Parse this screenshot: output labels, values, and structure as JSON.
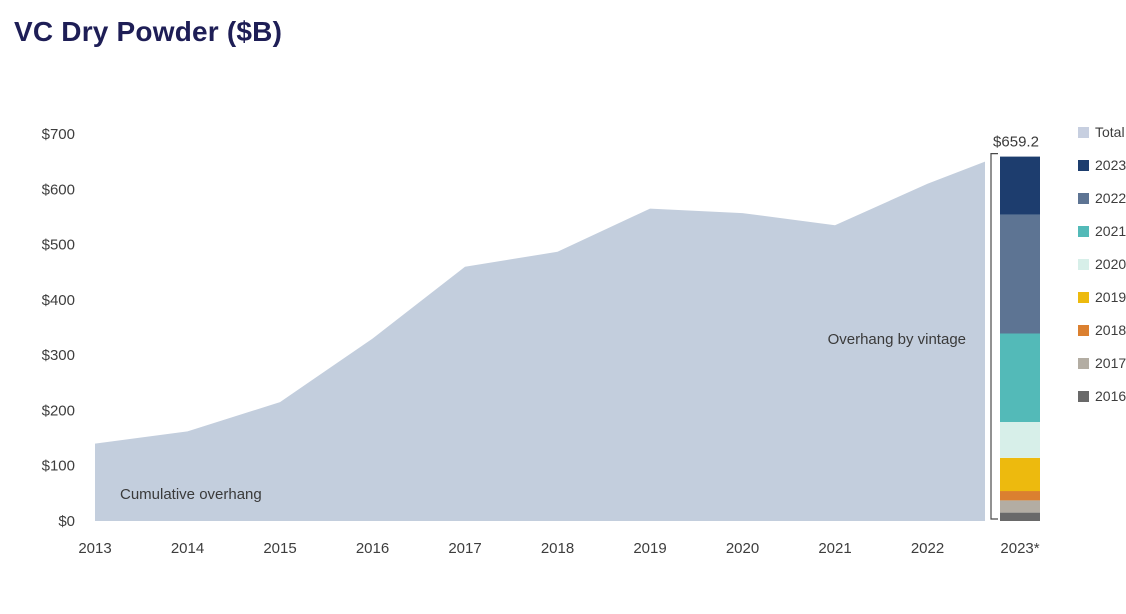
{
  "page": {
    "title": "VC Dry Powder ($B)"
  },
  "chart_data": {
    "type": "area",
    "title": "VC Dry Powder ($B)",
    "grid": false,
    "legend_position": "right",
    "ylim": [
      0,
      700
    ],
    "y_ticks": [
      "$0",
      "$100",
      "$200",
      "$300",
      "$400",
      "$500",
      "$600",
      "$700"
    ],
    "y_tick_values": [
      0,
      100,
      200,
      300,
      400,
      500,
      600,
      700
    ],
    "x_tick_labels": [
      "2013",
      "2014",
      "2015",
      "2016",
      "2017",
      "2018",
      "2019",
      "2020",
      "2021",
      "2022",
      "2023*"
    ],
    "area_series": {
      "name": "Cumulative overhang",
      "values": [
        140,
        162,
        215,
        330,
        460,
        487,
        565,
        557,
        535,
        610,
        650
      ],
      "color": "#c3cedd"
    },
    "area_label": "Cumulative overhang",
    "stacked_bar": {
      "x_label": "2023*",
      "total": 659.2,
      "total_label": "$659.2",
      "annotation": "Overhang by vintage",
      "segments_bottom_to_top": [
        {
          "name": "2016",
          "value": 15.2,
          "color": "#696969"
        },
        {
          "name": "2017",
          "value": 22,
          "color": "#b3ada3"
        },
        {
          "name": "2018",
          "value": 17,
          "color": "#db8030"
        },
        {
          "name": "2019",
          "value": 60,
          "color": "#edba0e"
        },
        {
          "name": "2020",
          "value": 65,
          "color": "#d7efe9"
        },
        {
          "name": "2021",
          "value": 160,
          "color": "#53bab8"
        },
        {
          "name": "2022",
          "value": 215,
          "color": "#5d7493"
        },
        {
          "name": "2023",
          "value": 105,
          "color": "#1d3d6e"
        }
      ]
    },
    "legend": [
      {
        "label": "Total",
        "color": "#c7cfe0"
      },
      {
        "label": "2023",
        "color": "#1d3d6e"
      },
      {
        "label": "2022",
        "color": "#5d7493"
      },
      {
        "label": "2021",
        "color": "#53bab8"
      },
      {
        "label": "2020",
        "color": "#d7efe9"
      },
      {
        "label": "2019",
        "color": "#edba0e"
      },
      {
        "label": "2018",
        "color": "#db8030"
      },
      {
        "label": "2017",
        "color": "#b3ada3"
      },
      {
        "label": "2016",
        "color": "#696969"
      }
    ]
  }
}
